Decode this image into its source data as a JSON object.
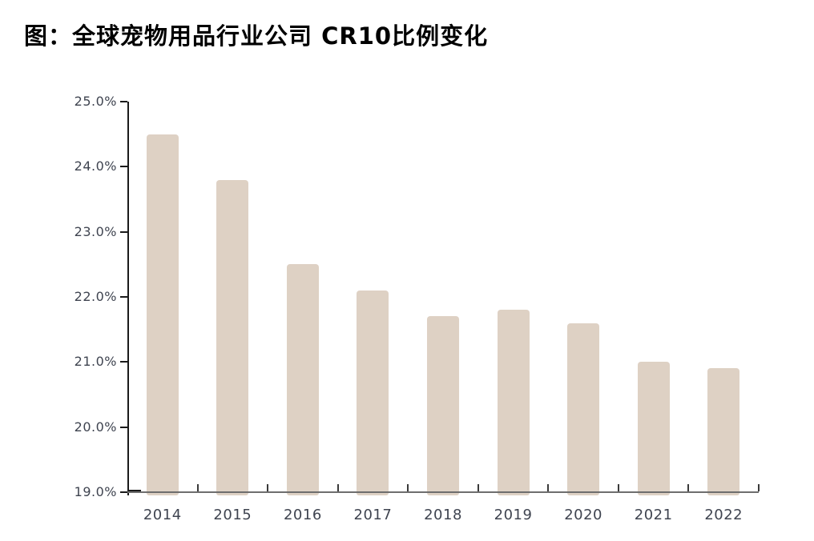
{
  "header": {
    "title": "图：全球宠物用品行业公司 CR10比例变化"
  },
  "chart_data": {
    "type": "bar",
    "title": "图：全球宠物用品行业公司 CR10比例变化",
    "categories": [
      "2014",
      "2015",
      "2016",
      "2017",
      "2018",
      "2019",
      "2020",
      "2021",
      "2022"
    ],
    "values": [
      24.5,
      23.8,
      22.5,
      22.1,
      21.7,
      21.8,
      21.6,
      21.0,
      20.9
    ],
    "unit": "%",
    "xlabel": "",
    "ylabel": "",
    "ylim": [
      19.0,
      25.0
    ],
    "ytick_step": 1.0,
    "ytick_labels": [
      "25.0%",
      "24.0%",
      "23.0%",
      "22.0%",
      "21.0%",
      "20.0%",
      "19.0%"
    ],
    "grid": false,
    "legend": false,
    "colors": {
      "bar": "#ded1c4",
      "y_axis": "#1a1a1a",
      "x_axis": "#6e6e6e",
      "tick_label": "#3f4450",
      "title": "#000000"
    }
  }
}
